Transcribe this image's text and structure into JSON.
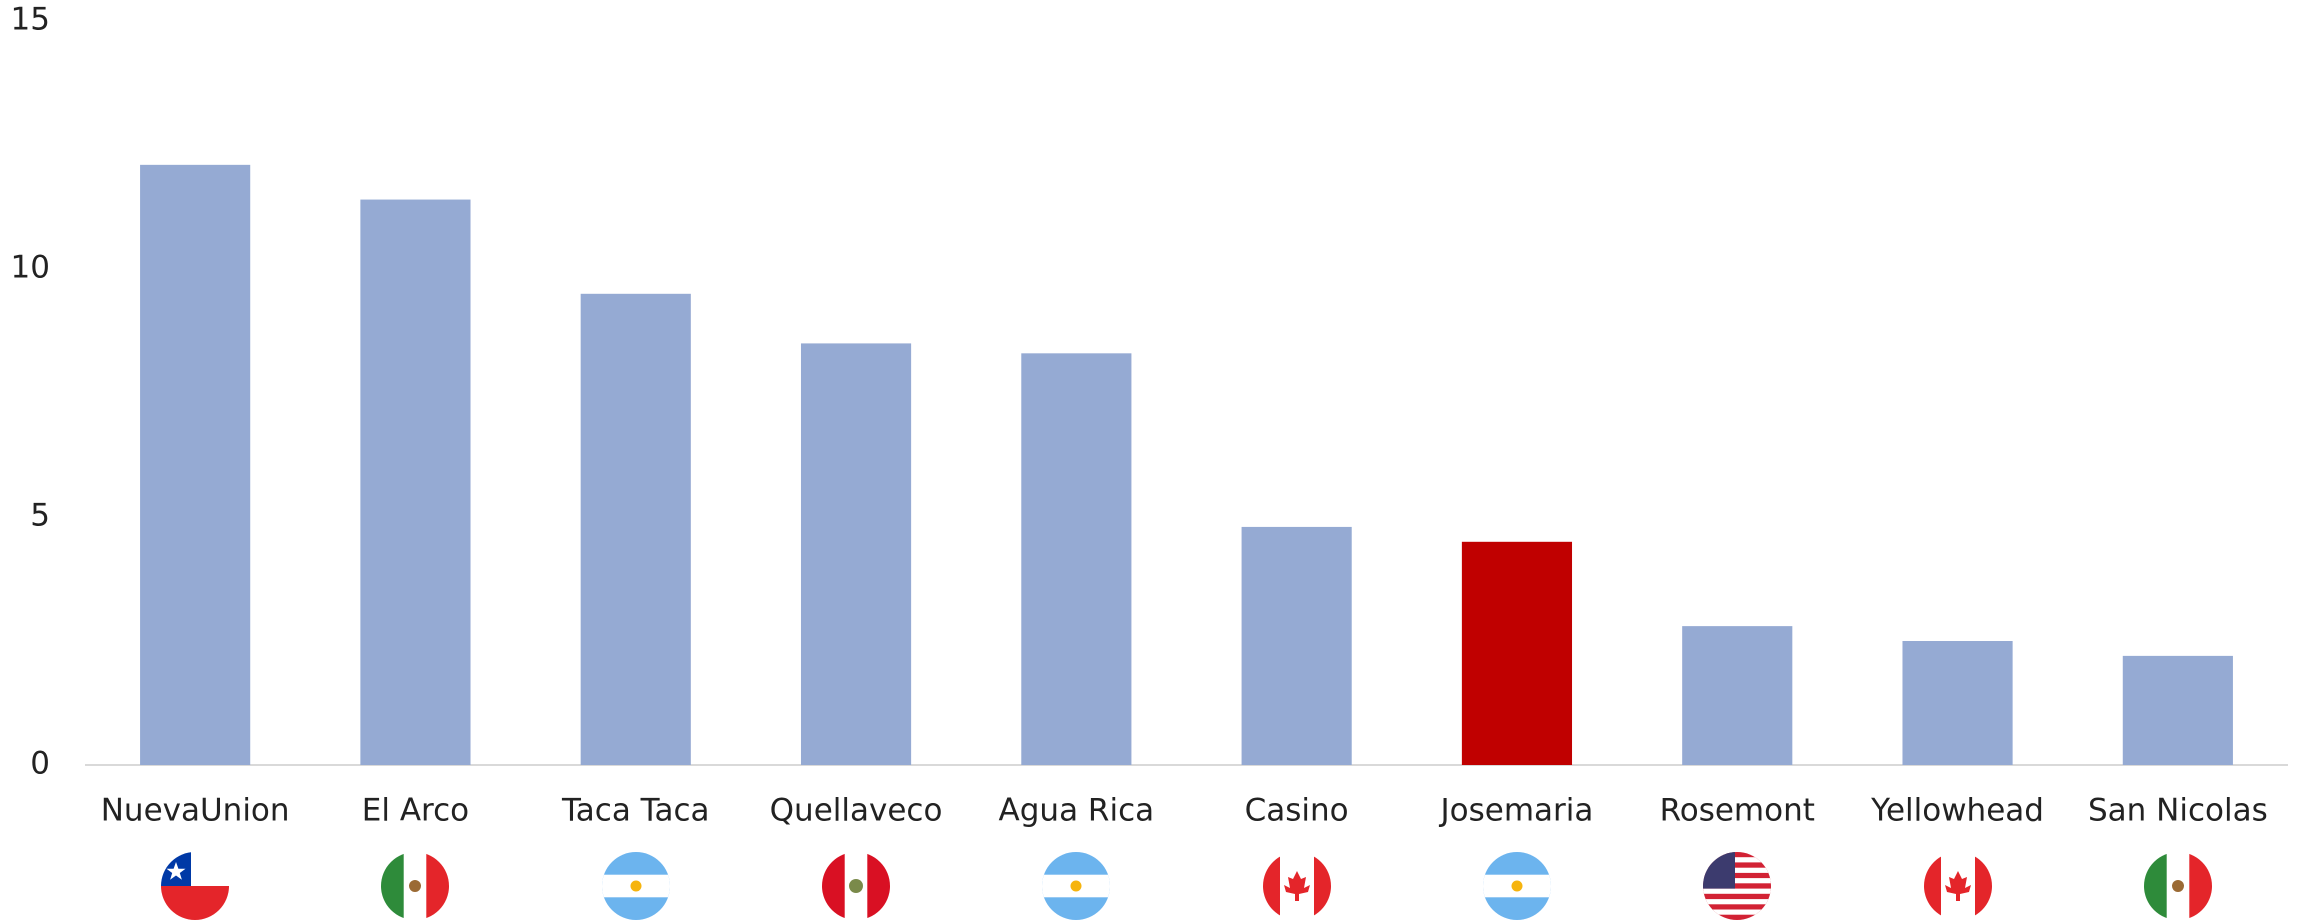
{
  "chart_data": {
    "type": "bar",
    "categories": [
      "NuevaUnion",
      "El Arco",
      "Taca Taca",
      "Quellaveco",
      "Agua Rica",
      "Casino",
      "Josemaria",
      "Rosemont",
      "Yellowhead",
      "San Nicolas"
    ],
    "values": [
      12.1,
      11.4,
      9.5,
      8.5,
      8.3,
      4.8,
      4.5,
      2.8,
      2.5,
      2.2
    ],
    "colors": [
      "#95aad3",
      "#95aad3",
      "#95aad3",
      "#95aad3",
      "#95aad3",
      "#95aad3",
      "#c00000",
      "#95aad3",
      "#95aad3",
      "#95aad3"
    ],
    "ylim": [
      0,
      15
    ],
    "yticks": [
      0,
      5,
      10,
      15
    ],
    "grid": false
  }
}
